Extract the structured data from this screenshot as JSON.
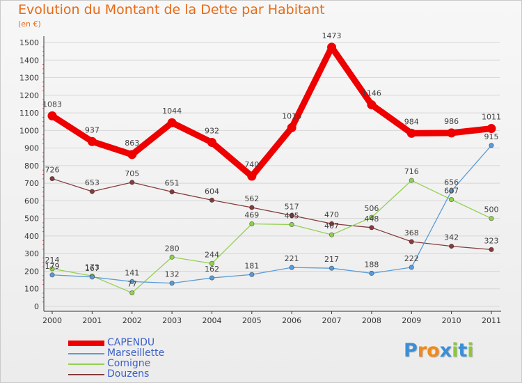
{
  "title": "Evolution du Montant de la Dette par Habitant",
  "subtitle": "(en €)",
  "colors": {
    "title": "#e96a16",
    "grid": "#d6d6d6",
    "legend_text": "#3a5fc8"
  },
  "logo": {
    "text": "Proxiti",
    "letters": [
      {
        "ch": "P",
        "color": "#3a8fd6"
      },
      {
        "ch": "r",
        "color": "#f08a1c"
      },
      {
        "ch": "o",
        "color": "#f08a1c"
      },
      {
        "ch": "x",
        "color": "#3a8fd6"
      },
      {
        "ch": "i",
        "color": "#8cc63f"
      },
      {
        "ch": "t",
        "color": "#3a8fd6"
      },
      {
        "ch": "i",
        "color": "#8cc63f"
      }
    ]
  },
  "chart_data": {
    "type": "line",
    "title": "Evolution du Montant de la Dette par Habitant",
    "subtitle": "(en €)",
    "x": [
      "2000",
      "2001",
      "2002",
      "2003",
      "2004",
      "2005",
      "2006",
      "2007",
      "2008",
      "2009",
      "2010",
      "2011"
    ],
    "yticks": [
      0,
      100,
      200,
      300,
      400,
      500,
      600,
      700,
      800,
      900,
      1000,
      1100,
      1200,
      1300,
      1400,
      1500
    ],
    "ylim": [
      0,
      1500
    ],
    "grid": "horizontal",
    "legend_position": "bottom-left",
    "series": [
      {
        "name": "CAPENDU",
        "color": "#ee0000",
        "width": 9,
        "marker": 6.5,
        "values": [
          1083,
          937,
          863,
          1044,
          932,
          740,
          1016,
          1473,
          1146,
          984,
          986,
          1011
        ],
        "labels": [
          "1083",
          "937",
          "863",
          "1044",
          "932",
          "740",
          "1016",
          "1473",
          "1146",
          "984",
          "986",
          "1011"
        ]
      },
      {
        "name": "Marseillette",
        "color": "#5b9bd5",
        "width": 1.3,
        "marker": 3.2,
        "values": [
          179,
          167,
          141,
          132,
          162,
          181,
          221,
          217,
          188,
          222,
          656,
          915
        ],
        "labels": [
          "179",
          "167",
          "141",
          "132",
          "162",
          "181",
          "221",
          "217",
          "188",
          "222",
          "656",
          "915"
        ]
      },
      {
        "name": "Comigne",
        "color": "#92d050",
        "width": 1.3,
        "marker": 3.2,
        "values": [
          214,
          173,
          77,
          280,
          244,
          469,
          465,
          407,
          506,
          716,
          607,
          500
        ],
        "labels": [
          "214",
          "173",
          "77",
          "280",
          "244",
          "469",
          "465",
          "407",
          "506",
          "716",
          "607",
          "500"
        ]
      },
      {
        "name": "Douzens",
        "color": "#843c3c",
        "width": 1.3,
        "marker": 3.2,
        "values": [
          726,
          653,
          705,
          651,
          604,
          562,
          517,
          470,
          448,
          368,
          342,
          323
        ],
        "labels": [
          "726",
          "653",
          "705",
          "651",
          "604",
          "562",
          "517",
          "470",
          "448",
          "368",
          "342",
          "323"
        ]
      }
    ]
  }
}
